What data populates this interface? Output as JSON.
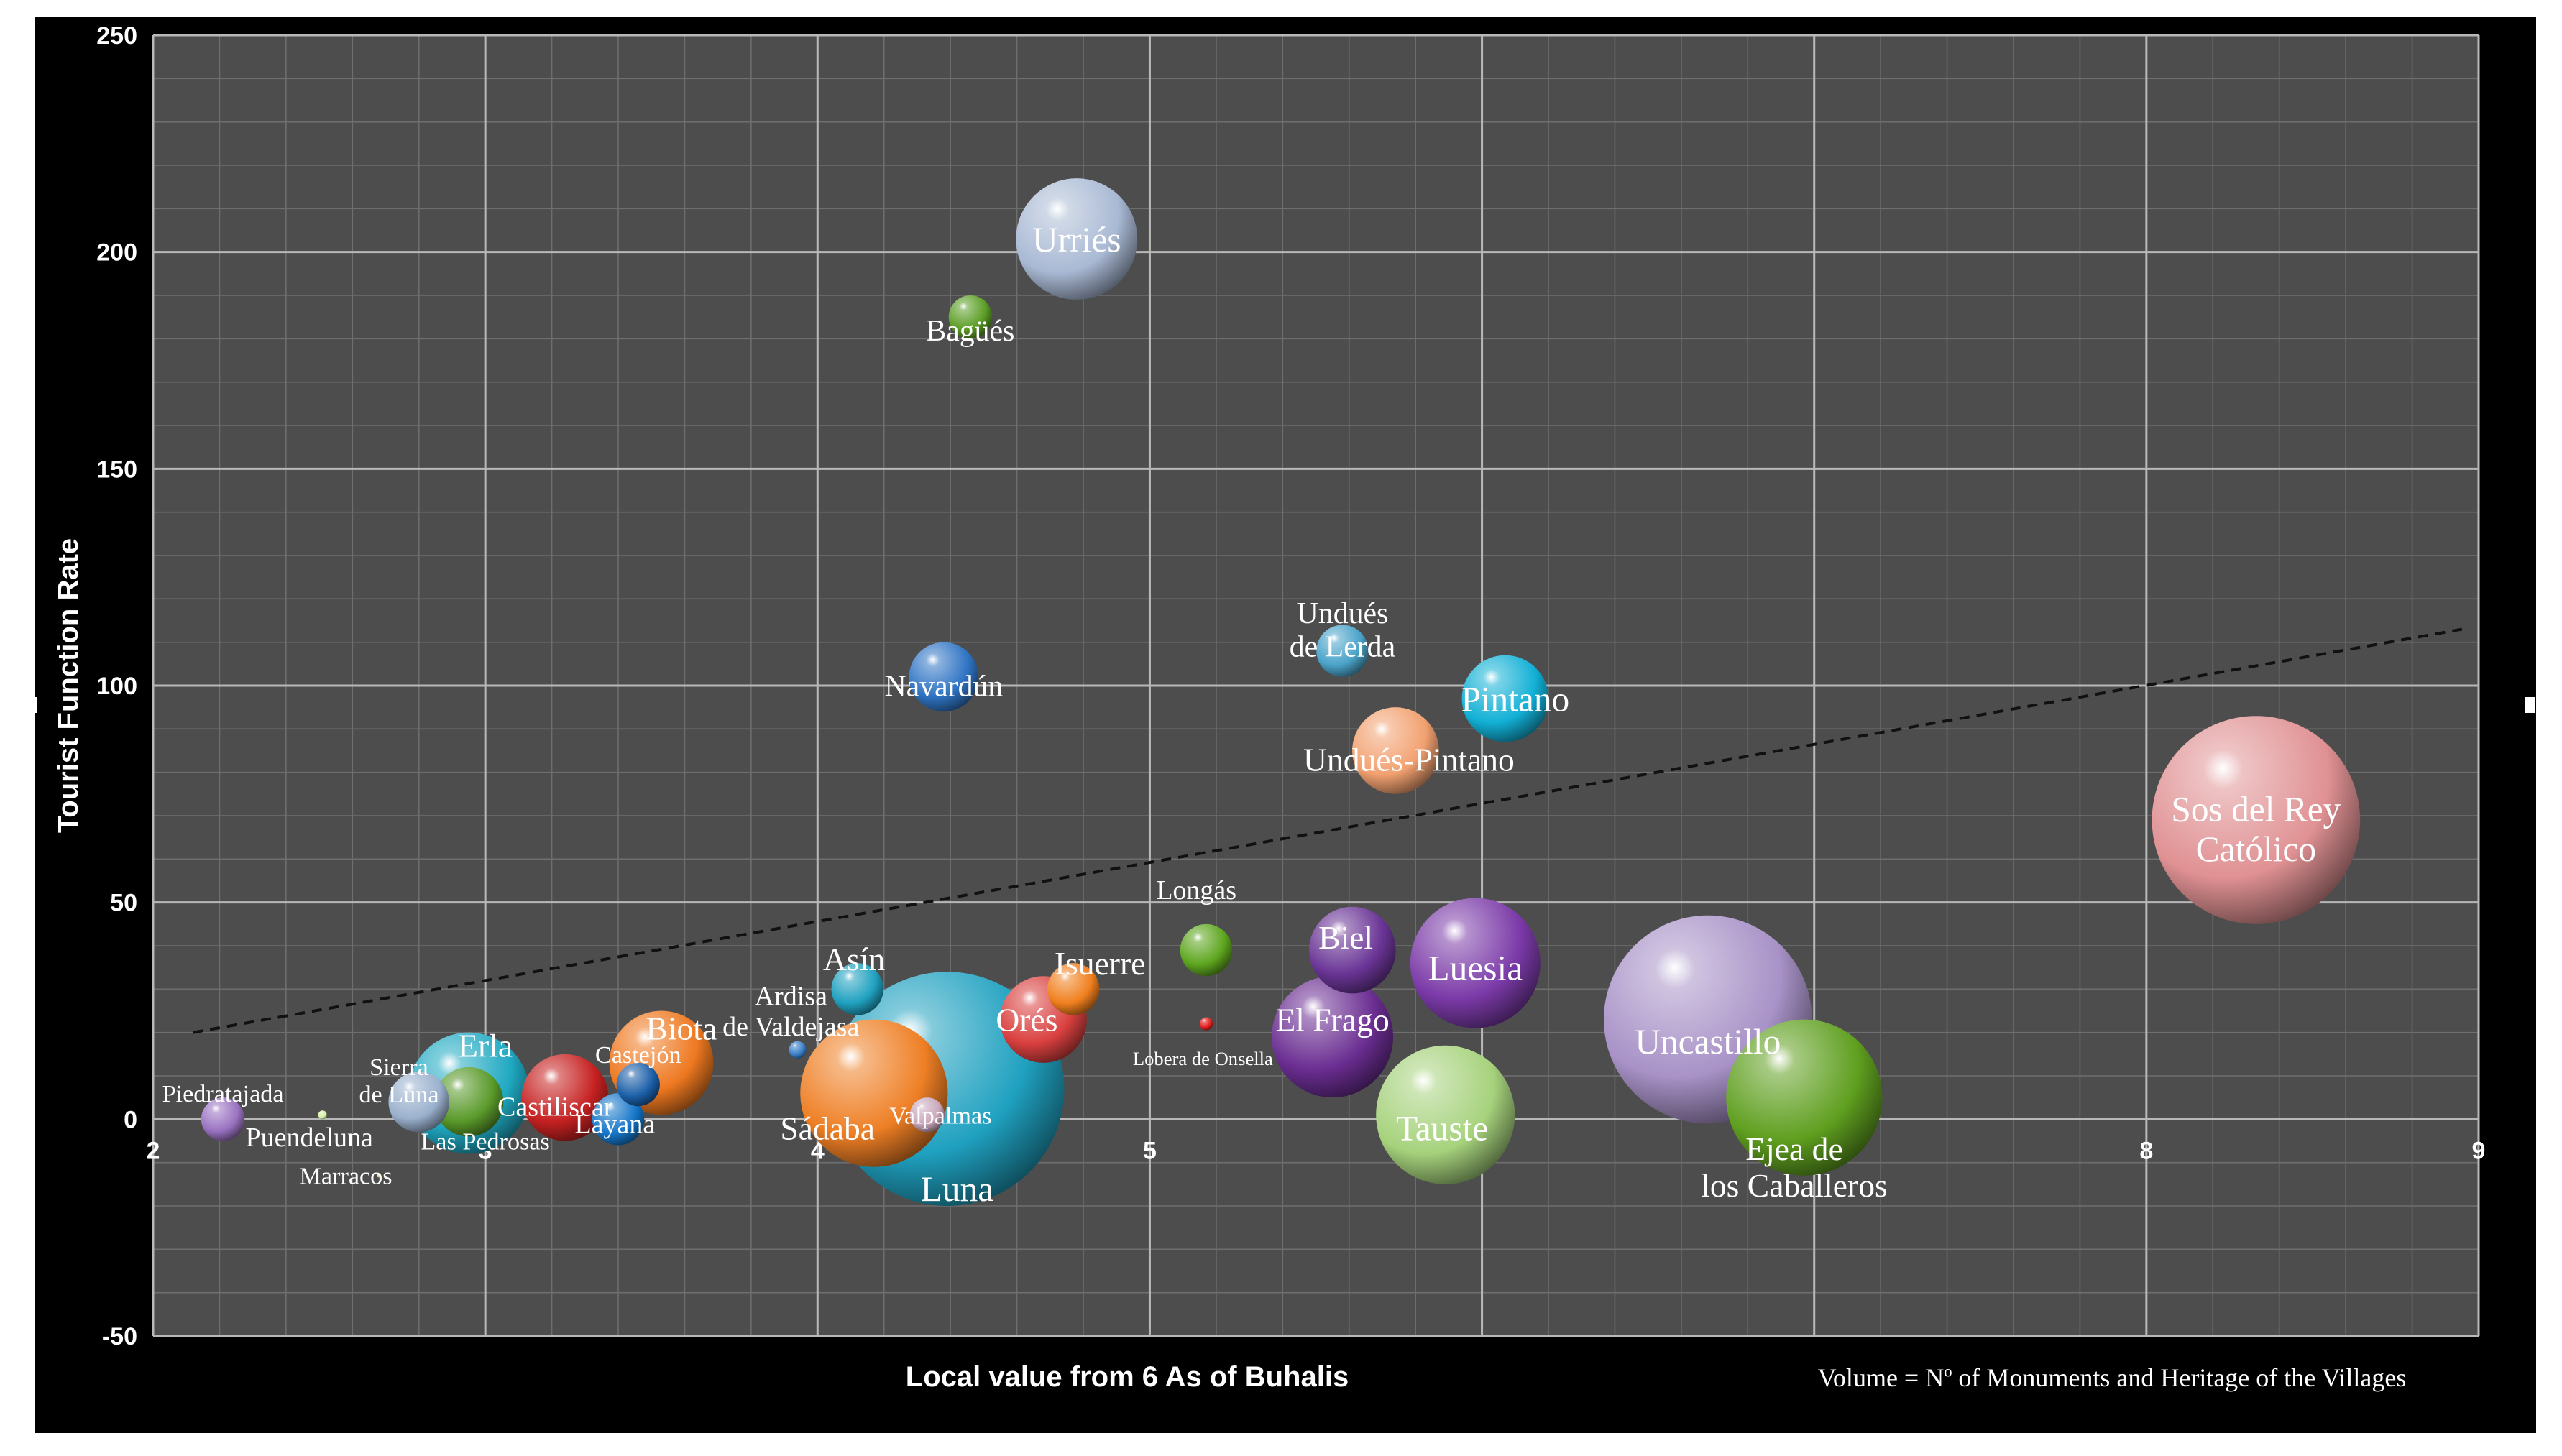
{
  "chart_data": {
    "type": "scatter",
    "subtype": "bubble",
    "xlabel": "Local value from 6 As of Buhalis",
    "ylabel": "Tourist Function Rate",
    "note": "Volume = Nº of Monuments and Heritage of the Villages",
    "xlim": [
      2,
      9
    ],
    "ylim": [
      -50,
      250
    ],
    "xticks": [
      "2",
      "3",
      "4",
      "5",
      "6",
      "7",
      "8",
      "9"
    ],
    "yticks": [
      "-50",
      "0",
      "50",
      "100",
      "150",
      "200",
      "250"
    ],
    "grid": true,
    "background": "#4d4d4d",
    "trendline": {
      "style": "dashed",
      "from": [
        2.12,
        20
      ],
      "to": [
        8.95,
        113
      ]
    },
    "points": [
      {
        "name": "Urriés",
        "label": [
          "Urriés"
        ],
        "x": 4.78,
        "y": 203,
        "r": 14,
        "color": "#a9b9d4",
        "ls": 26
      },
      {
        "name": "Bagüés",
        "label": [
          "Bagüés"
        ],
        "x": 4.46,
        "y": 185,
        "r": 5,
        "color": "#5c9e26",
        "ls": 22,
        "lx": 4.46,
        "ly": 182
      },
      {
        "name": "Navardún",
        "label": [
          "Navardún"
        ],
        "x": 4.38,
        "y": 102,
        "r": 8,
        "color": "#2f74c4",
        "ls": 22,
        "lx": 4.38,
        "ly": 100
      },
      {
        "name": "Undués de Lerda",
        "label": [
          "Undués",
          "de Lerda"
        ],
        "x": 5.58,
        "y": 108,
        "r": 6,
        "color": "#4aa3c9",
        "ls": 22,
        "lx": 5.58,
        "ly": 113
      },
      {
        "name": "Pintano",
        "label": [
          "Pintano"
        ],
        "x": 6.07,
        "y": 97,
        "r": 10,
        "color": "#12b0d6",
        "ls": 26,
        "lx": 6.1,
        "ly": 97
      },
      {
        "name": "Undués-Pintano",
        "label": [
          "Undués-Pintano"
        ],
        "x": 5.74,
        "y": 85,
        "r": 10,
        "color": "#f2a170",
        "ls": 24,
        "lx": 5.78,
        "ly": 83
      },
      {
        "name": "Sos del Rey Católico",
        "label": [
          "Sos del Rey",
          "Católico"
        ],
        "x": 8.33,
        "y": 69,
        "r": 24,
        "color": "#e09193",
        "ls": 26,
        "lx": 8.33,
        "ly": 67
      },
      {
        "name": "Longás",
        "label": [
          "Longás"
        ],
        "x": 5.17,
        "y": 39,
        "r": 6,
        "color": "#5ea61f",
        "ls": 20,
        "lx": 5.14,
        "ly": 53
      },
      {
        "name": "Biel",
        "label": [
          "Biel"
        ],
        "x": 5.61,
        "y": 39,
        "r": 10,
        "color": "#6a3596",
        "ls": 24,
        "lx": 5.59,
        "ly": 42
      },
      {
        "name": "Luesia",
        "label": [
          "Luesia"
        ],
        "x": 5.98,
        "y": 36,
        "r": 15,
        "color": "#7b3aa8",
        "ls": 26,
        "lx": 5.98,
        "ly": 35
      },
      {
        "name": "El Frago",
        "label": [
          "El Frago"
        ],
        "x": 5.55,
        "y": 19,
        "r": 14,
        "color": "#6a2d91",
        "ls": 24,
        "lx": 5.55,
        "ly": 23
      },
      {
        "name": "Tauste",
        "label": [
          "Tauste"
        ],
        "x": 5.89,
        "y": 1,
        "r": 16,
        "color": "#a6d27c",
        "ls": 26,
        "lx": 5.88,
        "ly": -2
      },
      {
        "name": "Ejea de los Caballeros",
        "label": [
          "Ejea de",
          "los Caballeros"
        ],
        "x": 6.97,
        "y": 5,
        "r": 18,
        "color": "#5f9f1f",
        "ls": 24,
        "lx": 6.94,
        "ly": -11
      },
      {
        "name": "Uncastillo",
        "label": [
          "Uncastillo"
        ],
        "x": 6.68,
        "y": 23,
        "r": 24,
        "color": "#a892c7",
        "ls": 26,
        "lx": 6.68,
        "ly": 18
      },
      {
        "name": "Isuerre",
        "label": [
          "Isuerre"
        ],
        "x": 4.77,
        "y": 30,
        "r": 6,
        "color": "#f07f1e",
        "ls": 24,
        "lx": 4.85,
        "ly": 36
      },
      {
        "name": "Orés",
        "label": [
          "Orés"
        ],
        "x": 4.68,
        "y": 23,
        "r": 10,
        "color": "#d9403f",
        "ls": 24,
        "lx": 4.63,
        "ly": 23
      },
      {
        "name": "Lobera de Onsella",
        "label": [
          "Lobera de Onsella"
        ],
        "x": 5.17,
        "y": 22,
        "r": 1.5,
        "color": "#e01e1e",
        "ls": 14,
        "lx": 5.16,
        "ly": 14
      },
      {
        "name": "Luna",
        "label": [
          "Luna"
        ],
        "x": 4.39,
        "y": 7,
        "r": 27,
        "color": "#1fa1c0",
        "ls": 26,
        "lx": 4.42,
        "ly": -16
      },
      {
        "name": "Asín",
        "label": [
          "Asín"
        ],
        "x": 4.12,
        "y": 30,
        "r": 6,
        "color": "#1fa1c0",
        "ls": 24,
        "lx": 4.11,
        "ly": 37
      },
      {
        "name": "Sádaba",
        "label": [
          "Sádaba"
        ],
        "x": 4.17,
        "y": 6,
        "r": 17,
        "color": "#ee7f25",
        "ls": 24,
        "lx": 4.03,
        "ly": -2
      },
      {
        "name": "Valpalmas",
        "label": [
          "Valpalmas"
        ],
        "x": 4.33,
        "y": 1,
        "r": 4,
        "color": "#c9a7bb",
        "ls": 18,
        "lx": 4.37,
        "ly": 1
      },
      {
        "name": "Ardisa de Valdejasa",
        "label": [
          "Ardisa",
          "de Valdejasa"
        ],
        "x": 3.94,
        "y": 16,
        "r": 2,
        "color": "#3a7fc9",
        "ls": 20,
        "lx": 3.92,
        "ly": 25
      },
      {
        "name": "Biota",
        "label": [
          "Biota"
        ],
        "x": 3.53,
        "y": 13,
        "r": 12,
        "color": "#ee7820",
        "ls": 24,
        "lx": 3.59,
        "ly": 21
      },
      {
        "name": "Castejón",
        "label": [
          "Castejón"
        ],
        "x": 3.46,
        "y": 8,
        "r": 5,
        "color": "#1b5fa8",
        "ls": 18,
        "lx": 3.46,
        "ly": 15
      },
      {
        "name": "Layana",
        "label": [
          "Layana"
        ],
        "x": 3.4,
        "y": 0,
        "r": 6,
        "color": "#1576c9",
        "ls": 20,
        "lx": 3.39,
        "ly": -1
      },
      {
        "name": "Castiliscar",
        "label": [
          "Castiliscar"
        ],
        "x": 3.24,
        "y": 5,
        "r": 10,
        "color": "#c62121",
        "ls": 20,
        "lx": 3.21,
        "ly": 3
      },
      {
        "name": "Erla",
        "label": [
          "Erla"
        ],
        "x": 2.95,
        "y": 6,
        "r": 14,
        "color": "#20a9c2",
        "ls": 24,
        "lx": 3.0,
        "ly": 17
      },
      {
        "name": "Las Pedrosas",
        "label": [
          "Las Pedrosas"
        ],
        "x": 2.95,
        "y": 4,
        "r": 8,
        "color": "#5a9a2a",
        "ls": 18,
        "lx": 3.0,
        "ly": -5
      },
      {
        "name": "Sierra de Luna",
        "label": [
          "Sierra",
          "de Luna"
        ],
        "x": 2.8,
        "y": 4,
        "r": 7,
        "color": "#9ab1cd",
        "ls": 18,
        "lx": 2.74,
        "ly": 9
      },
      {
        "name": "Marracos",
        "label": [
          "Marracos"
        ],
        "x": 2.68,
        "y": -13,
        "r": 0,
        "color": "#f1d08a",
        "ls": 18,
        "lx": 2.58,
        "ly": -13
      },
      {
        "name": "Puendeluna",
        "label": [
          "Puendeluna"
        ],
        "x": 2.51,
        "y": 1,
        "r": 1,
        "color": "#d6f0a8",
        "ls": 20,
        "lx": 2.47,
        "ly": -4
      },
      {
        "name": "Piedratajada",
        "label": [
          "Piedratajada"
        ],
        "x": 2.21,
        "y": 0,
        "r": 5,
        "color": "#9a72c1",
        "ls": 18,
        "lx": 2.21,
        "ly": 6
      }
    ]
  }
}
